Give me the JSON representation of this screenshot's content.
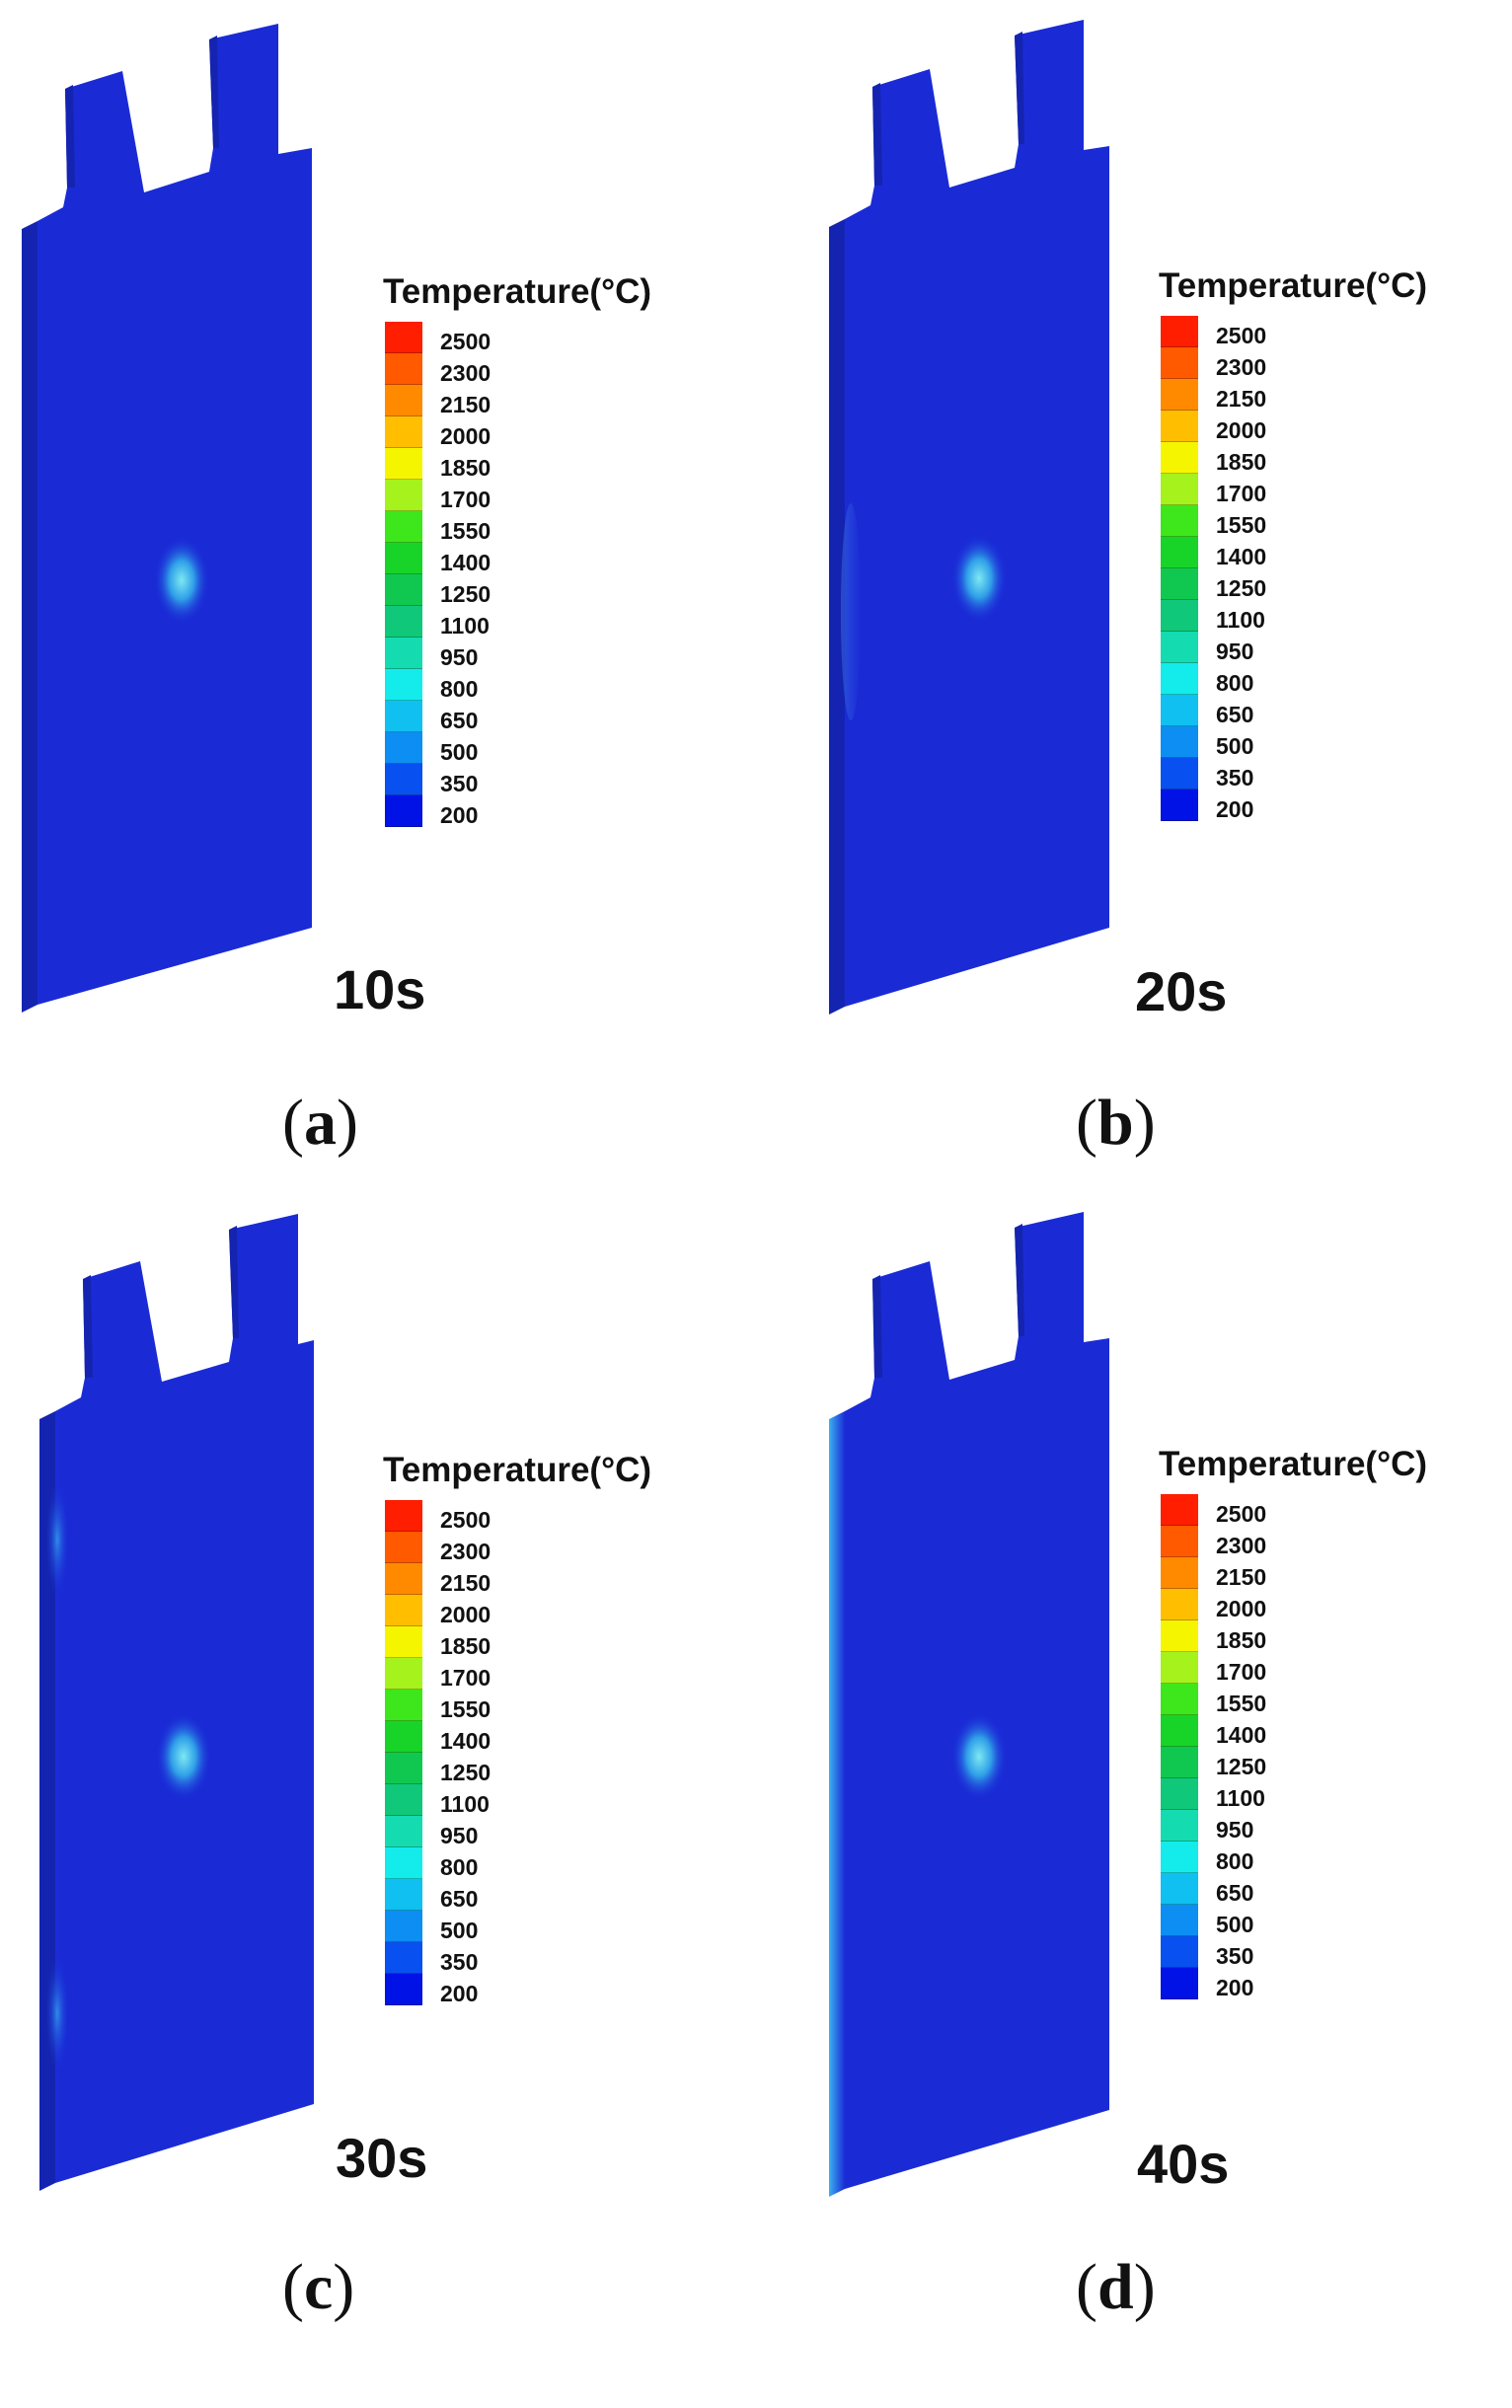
{
  "legend": {
    "title": "Temperature(°C)",
    "labels": [
      "2500",
      "2300",
      "2150",
      "2000",
      "1850",
      "1700",
      "1550",
      "1400",
      "1250",
      "1100",
      "950",
      "800",
      "650",
      "500",
      "350",
      "200"
    ],
    "colors": [
      "#ff1e00",
      "#ff5a00",
      "#ff8a00",
      "#ffbe00",
      "#f5f500",
      "#a6f21c",
      "#3ee61c",
      "#18d428",
      "#10c850",
      "#10c87a",
      "#14dcb0",
      "#14ecec",
      "#10c0f0",
      "#0c8ef2",
      "#0850f0",
      "#0012e6"
    ]
  },
  "battery": {
    "body_color": "#1a2bd6",
    "side_color": "#1424b0",
    "hotspot_color": "#38b8f2"
  },
  "panels": [
    {
      "id": "a",
      "time": "10s",
      "caption_letter": "a",
      "caption_open": "(",
      "caption_close": ")"
    },
    {
      "id": "b",
      "time": "20s",
      "caption_letter": "b",
      "caption_open": "(",
      "caption_close": ")"
    },
    {
      "id": "c",
      "time": "30s",
      "caption_letter": "c",
      "caption_open": "(",
      "caption_close": ")"
    },
    {
      "id": "d",
      "time": "40s",
      "caption_letter": "d",
      "caption_open": "(",
      "caption_close": ")"
    }
  ]
}
